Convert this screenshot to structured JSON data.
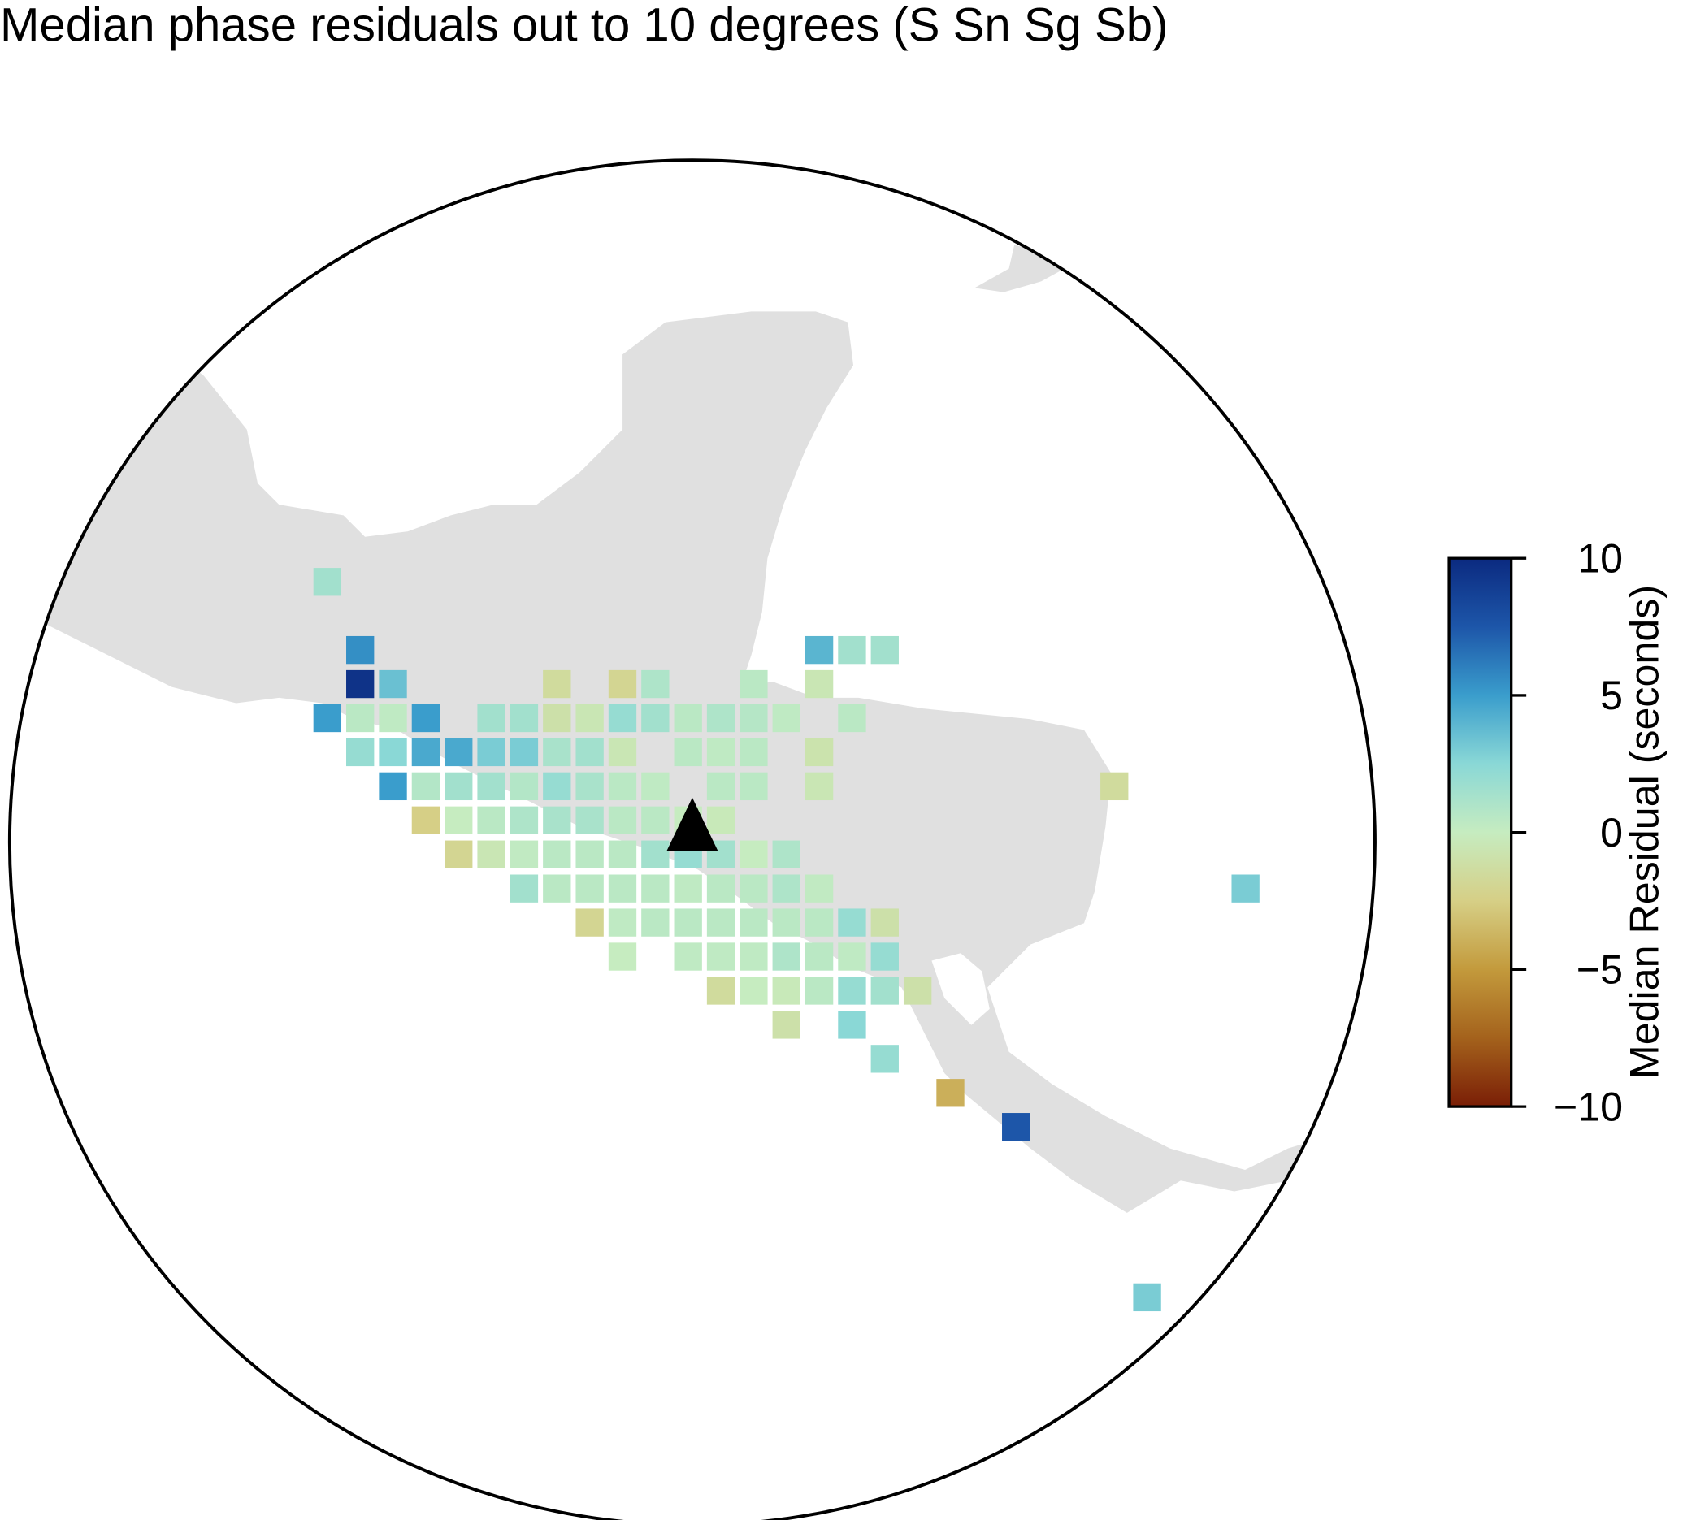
{
  "chart_data": {
    "type": "gridmap",
    "title": "Median phase residuals out to 10 degrees (S Sn Sg Sb)",
    "colorbar_label": "Median Residual (seconds)",
    "clim": [
      -10,
      10
    ],
    "cticks": [
      {
        "value": -10,
        "label": "−10"
      },
      {
        "value": -5,
        "label": "−5"
      },
      0,
      5,
      10
    ],
    "colormap": [
      "#7a1e06",
      "#a4621c",
      "#c39a3c",
      "#d6cf86",
      "#c6ecc0",
      "#8ad8d6",
      "#3a9dcc",
      "#1d56a9",
      "#0b2a80"
    ],
    "cells": [
      {
        "col": 0,
        "row": 0,
        "value": 1.5
      },
      {
        "col": 1,
        "row": 2,
        "value": 5.5
      },
      {
        "col": 15,
        "row": 2,
        "value": 4
      },
      {
        "col": 16,
        "row": 2,
        "value": 1.5
      },
      {
        "col": 17,
        "row": 2,
        "value": 1.5
      },
      {
        "col": 1,
        "row": 3,
        "value": 9.5
      },
      {
        "col": 2,
        "row": 3,
        "value": 3.5
      },
      {
        "col": 7,
        "row": 3,
        "value": -1.5
      },
      {
        "col": 9,
        "row": 3,
        "value": -2
      },
      {
        "col": 10,
        "row": 3,
        "value": 1
      },
      {
        "col": 13,
        "row": 3,
        "value": 0.5
      },
      {
        "col": 15,
        "row": 3,
        "value": -0.5
      },
      {
        "col": 0,
        "row": 4,
        "value": 5
      },
      {
        "col": 1,
        "row": 4,
        "value": 0.5
      },
      {
        "col": 2,
        "row": 4,
        "value": 0.3
      },
      {
        "col": 3,
        "row": 4,
        "value": 5
      },
      {
        "col": 5,
        "row": 4,
        "value": 1.5
      },
      {
        "col": 6,
        "row": 4,
        "value": 1.5
      },
      {
        "col": 7,
        "row": 4,
        "value": -1
      },
      {
        "col": 8,
        "row": 4,
        "value": -0.5
      },
      {
        "col": 9,
        "row": 4,
        "value": 2
      },
      {
        "col": 10,
        "row": 4,
        "value": 1.5
      },
      {
        "col": 11,
        "row": 4,
        "value": 0.5
      },
      {
        "col": 12,
        "row": 4,
        "value": 1
      },
      {
        "col": 13,
        "row": 4,
        "value": 0.7
      },
      {
        "col": 14,
        "row": 4,
        "value": 0.3
      },
      {
        "col": 16,
        "row": 4,
        "value": 0.5
      },
      {
        "col": 1,
        "row": 5,
        "value": 2
      },
      {
        "col": 2,
        "row": 5,
        "value": 2.5
      },
      {
        "col": 3,
        "row": 5,
        "value": 4.5
      },
      {
        "col": 4,
        "row": 5,
        "value": 4.5
      },
      {
        "col": 5,
        "row": 5,
        "value": 3
      },
      {
        "col": 6,
        "row": 5,
        "value": 3
      },
      {
        "col": 7,
        "row": 5,
        "value": 1.2
      },
      {
        "col": 8,
        "row": 5,
        "value": 1.5
      },
      {
        "col": 9,
        "row": 5,
        "value": -0.5
      },
      {
        "col": 11,
        "row": 5,
        "value": 0.5
      },
      {
        "col": 12,
        "row": 5,
        "value": 0.3
      },
      {
        "col": 13,
        "row": 5,
        "value": 0.5
      },
      {
        "col": 15,
        "row": 5,
        "value": -0.8
      },
      {
        "col": 2,
        "row": 6,
        "value": 5
      },
      {
        "col": 3,
        "row": 6,
        "value": 0.8
      },
      {
        "col": 4,
        "row": 6,
        "value": 1.5
      },
      {
        "col": 5,
        "row": 6,
        "value": 1.5
      },
      {
        "col": 6,
        "row": 6,
        "value": 0.8
      },
      {
        "col": 7,
        "row": 6,
        "value": 2
      },
      {
        "col": 8,
        "row": 6,
        "value": 1.2
      },
      {
        "col": 9,
        "row": 6,
        "value": 0.5
      },
      {
        "col": 10,
        "row": 6,
        "value": 0.3
      },
      {
        "col": 12,
        "row": 6,
        "value": 0.5
      },
      {
        "col": 13,
        "row": 6,
        "value": 0.5
      },
      {
        "col": 15,
        "row": 6,
        "value": -0.5
      },
      {
        "col": 24,
        "row": 6,
        "value": -1.5
      },
      {
        "col": 3,
        "row": 7,
        "value": -2.5
      },
      {
        "col": 4,
        "row": 7,
        "value": 0
      },
      {
        "col": 5,
        "row": 7,
        "value": 0.5
      },
      {
        "col": 6,
        "row": 7,
        "value": 1
      },
      {
        "col": 7,
        "row": 7,
        "value": 1.2
      },
      {
        "col": 8,
        "row": 7,
        "value": 1.2
      },
      {
        "col": 9,
        "row": 7,
        "value": 0.5
      },
      {
        "col": 10,
        "row": 7,
        "value": 0.5
      },
      {
        "col": 11,
        "row": 7,
        "value": 0
      },
      {
        "col": 12,
        "row": 7,
        "value": -0.3
      },
      {
        "col": 4,
        "row": 8,
        "value": -2
      },
      {
        "col": 5,
        "row": 8,
        "value": -0.5
      },
      {
        "col": 6,
        "row": 8,
        "value": 0.2
      },
      {
        "col": 7,
        "row": 8,
        "value": 0.5
      },
      {
        "col": 8,
        "row": 8,
        "value": 0.5
      },
      {
        "col": 9,
        "row": 8,
        "value": 0.5
      },
      {
        "col": 10,
        "row": 8,
        "value": 1.5
      },
      {
        "col": 11,
        "row": 8,
        "value": 2
      },
      {
        "col": 12,
        "row": 8,
        "value": 1.5
      },
      {
        "col": 13,
        "row": 8,
        "value": 0
      },
      {
        "col": 14,
        "row": 8,
        "value": 1
      },
      {
        "col": 6,
        "row": 9,
        "value": 1.5
      },
      {
        "col": 7,
        "row": 9,
        "value": 0.5
      },
      {
        "col": 8,
        "row": 9,
        "value": 0.5
      },
      {
        "col": 9,
        "row": 9,
        "value": 0.5
      },
      {
        "col": 10,
        "row": 9,
        "value": 0.5
      },
      {
        "col": 11,
        "row": 9,
        "value": 0.3
      },
      {
        "col": 12,
        "row": 9,
        "value": 0.5
      },
      {
        "col": 13,
        "row": 9,
        "value": 0.5
      },
      {
        "col": 14,
        "row": 9,
        "value": 1
      },
      {
        "col": 15,
        "row": 9,
        "value": 0.2
      },
      {
        "col": 28,
        "row": 9,
        "value": 3
      },
      {
        "col": 8,
        "row": 10,
        "value": -2
      },
      {
        "col": 9,
        "row": 10,
        "value": 0.3
      },
      {
        "col": 10,
        "row": 10,
        "value": 0.5
      },
      {
        "col": 11,
        "row": 10,
        "value": 0.5
      },
      {
        "col": 12,
        "row": 10,
        "value": 0.5
      },
      {
        "col": 13,
        "row": 10,
        "value": 0.5
      },
      {
        "col": 14,
        "row": 10,
        "value": 0.5
      },
      {
        "col": 15,
        "row": 10,
        "value": 0.5
      },
      {
        "col": 16,
        "row": 10,
        "value": 2
      },
      {
        "col": 17,
        "row": 10,
        "value": -1
      },
      {
        "col": 9,
        "row": 11,
        "value": 0
      },
      {
        "col": 11,
        "row": 11,
        "value": 0.3
      },
      {
        "col": 12,
        "row": 11,
        "value": 0.3
      },
      {
        "col": 13,
        "row": 11,
        "value": 0.3
      },
      {
        "col": 14,
        "row": 11,
        "value": 1
      },
      {
        "col": 15,
        "row": 11,
        "value": 0.5
      },
      {
        "col": 16,
        "row": 11,
        "value": 0.3
      },
      {
        "col": 17,
        "row": 11,
        "value": 2
      },
      {
        "col": 12,
        "row": 12,
        "value": -1.5
      },
      {
        "col": 13,
        "row": 12,
        "value": 0
      },
      {
        "col": 14,
        "row": 12,
        "value": -0.3
      },
      {
        "col": 15,
        "row": 12,
        "value": 0.5
      },
      {
        "col": 16,
        "row": 12,
        "value": 2
      },
      {
        "col": 17,
        "row": 12,
        "value": 1.5
      },
      {
        "col": 18,
        "row": 12,
        "value": -1
      },
      {
        "col": 14,
        "row": 13,
        "value": -1
      },
      {
        "col": 16,
        "row": 13,
        "value": 2.5
      },
      {
        "col": 17,
        "row": 14,
        "value": 2
      },
      {
        "col": 19,
        "row": 15,
        "value": -4
      },
      {
        "col": 21,
        "row": 16,
        "value": 7.5
      },
      {
        "col": 25,
        "row": 21,
        "value": 3
      }
    ]
  }
}
